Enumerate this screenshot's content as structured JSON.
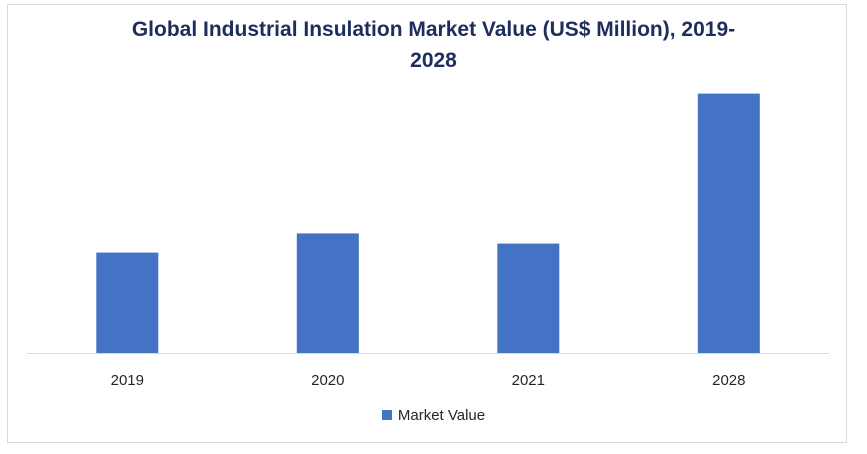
{
  "chart_data": {
    "type": "bar",
    "title_line1": "Global Industrial Insulation Market Value (US$ Million), 2019-",
    "title_line2": "2028",
    "categories": [
      "2019",
      "2020",
      "2021",
      "2028"
    ],
    "series": [
      {
        "name": "Market Value",
        "values": [
          89,
          106,
          97,
          230
        ],
        "color": "#4472c4"
      }
    ],
    "ylim": [
      0,
      250
    ],
    "grid": false,
    "legend_position": "bottom",
    "axis_line_color": "#d9d9d9"
  }
}
